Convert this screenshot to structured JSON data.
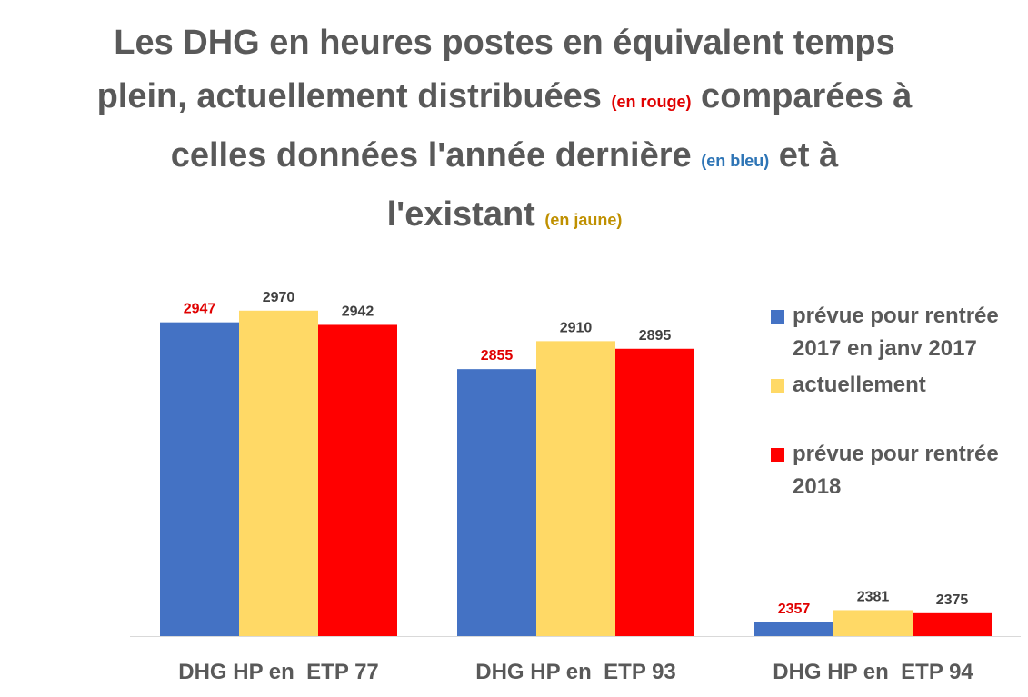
{
  "title": {
    "line1": "Les DHG en heures postes en équivalent temps",
    "line2a": "plein, actuellement distribuées ",
    "line2_red": "(en rouge)",
    "line2b": " comparées à",
    "line3a": "celles données l'année dernière ",
    "line3_blue": "(en bleu)",
    "line3b": " et à",
    "line4a": "l'existant ",
    "line4_gold": "(en jaune)"
  },
  "colors": {
    "blue": "#4472c4",
    "yellow": "#ffd966",
    "red": "#ff0000",
    "text": "#595959",
    "red_label": "#e00000",
    "baseline": "#d9d9d9"
  },
  "chart_data": {
    "type": "bar",
    "categories": [
      "DHG HP en  ETP 77",
      "DHG HP en  ETP 93",
      "DHG HP en  ETP 94"
    ],
    "series": [
      {
        "name": "prévue pour rentrée 2017 en janv 2017",
        "values": [
          2947,
          2855,
          2357
        ],
        "color": "#4472c4",
        "label_color": "#e00000"
      },
      {
        "name": "actuellement",
        "values": [
          2970,
          2910,
          2381
        ],
        "color": "#ffd966",
        "label_color": "#404040"
      },
      {
        "name": "prévue pour rentrée 2018",
        "values": [
          2942,
          2895,
          2375
        ],
        "color": "#ff0000",
        "label_color": "#404040"
      }
    ],
    "data_labels": [
      [
        "2947",
        "2855",
        "2357"
      ],
      [
        "2970",
        "2910",
        "2381"
      ],
      [
        "2942",
        "2895",
        "2375"
      ]
    ],
    "ylim": [
      2330,
      3000
    ],
    "legend_position": "right",
    "grid": false
  }
}
